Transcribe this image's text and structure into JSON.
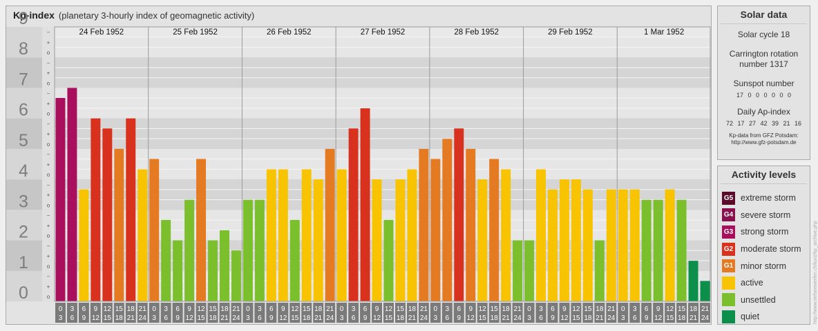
{
  "title": "Kp-index",
  "subtitle": "(planetary 3-hourly index of geomagnetic activity)",
  "colors": {
    "extreme": "#5c0a2a",
    "severe": "#8a0f4e",
    "strong": "#a80f5c",
    "moderate": "#d8321f",
    "minor": "#e47a22",
    "active": "#f8c300",
    "unsettled": "#7cbf2c",
    "quiet": "#0c8f4a"
  },
  "chart_data": {
    "type": "bar",
    "title": "Kp-index",
    "ylim": [
      0,
      9
    ],
    "y_ticks": [
      "0",
      "1",
      "2",
      "3",
      "4",
      "5",
      "6",
      "7",
      "8",
      "9"
    ],
    "thirds_labels": [
      "o",
      "+",
      "−"
    ],
    "days": [
      "24 Feb 1952",
      "25 Feb 1952",
      "26 Feb 1952",
      "27 Feb 1952",
      "28 Feb 1952",
      "29 Feb 1952",
      "1 Mar 1952"
    ],
    "interval_start": [
      "0",
      "3",
      "6",
      "9",
      "12",
      "15",
      "18",
      "21"
    ],
    "interval_end": [
      "3",
      "6",
      "9",
      "12",
      "15",
      "18",
      "21",
      "24"
    ],
    "values": [
      6.67,
      7.0,
      3.67,
      6.0,
      5.67,
      5.0,
      6.0,
      4.33,
      4.67,
      2.67,
      2.0,
      3.33,
      4.67,
      2.0,
      2.33,
      1.67,
      3.33,
      3.33,
      4.33,
      4.33,
      2.67,
      4.33,
      4.0,
      5.0,
      4.33,
      5.67,
      6.33,
      4.0,
      2.67,
      4.0,
      4.33,
      5.0,
      4.67,
      5.33,
      5.67,
      5.0,
      4.0,
      4.67,
      4.33,
      2.0,
      2.0,
      4.33,
      3.67,
      4.0,
      4.0,
      3.67,
      2.0,
      3.67,
      3.67,
      3.67,
      3.33,
      3.33,
      3.67,
      3.33,
      1.33,
      0.67
    ]
  },
  "solar_data": {
    "heading": "Solar data",
    "cycle": "Solar cycle 18",
    "carrington_line1": "Carrington rotation",
    "carrington_line2": "number 1317",
    "sunspot_heading": "Sunspot number",
    "sunspot_values": "17 0 0 0 0 0 0",
    "ap_heading": "Daily Ap-index",
    "ap_values": "72 17 27 42 39 21 16",
    "source_line1": "Kp-data from GFZ Potsdam:",
    "source_line2": "http://www.gfz-potsdam.de"
  },
  "activity_levels": {
    "heading": "Activity levels",
    "items": [
      {
        "code": "G5",
        "label": "extreme storm",
        "color_key": "extreme"
      },
      {
        "code": "G4",
        "label": "severe storm",
        "color_key": "severe"
      },
      {
        "code": "G3",
        "label": "strong storm",
        "color_key": "strong"
      },
      {
        "code": "G2",
        "label": "moderate storm",
        "color_key": "moderate"
      },
      {
        "code": "G1",
        "label": "minor storm",
        "color_key": "minor"
      },
      {
        "code": "",
        "label": "active",
        "color_key": "active"
      },
      {
        "code": "",
        "label": "unsettled",
        "color_key": "unsettled"
      },
      {
        "code": "",
        "label": "quiet",
        "color_key": "quiet"
      }
    ]
  },
  "watermark": "http://www.tiefseewerfen.ch/kurz/kp_archive.php"
}
